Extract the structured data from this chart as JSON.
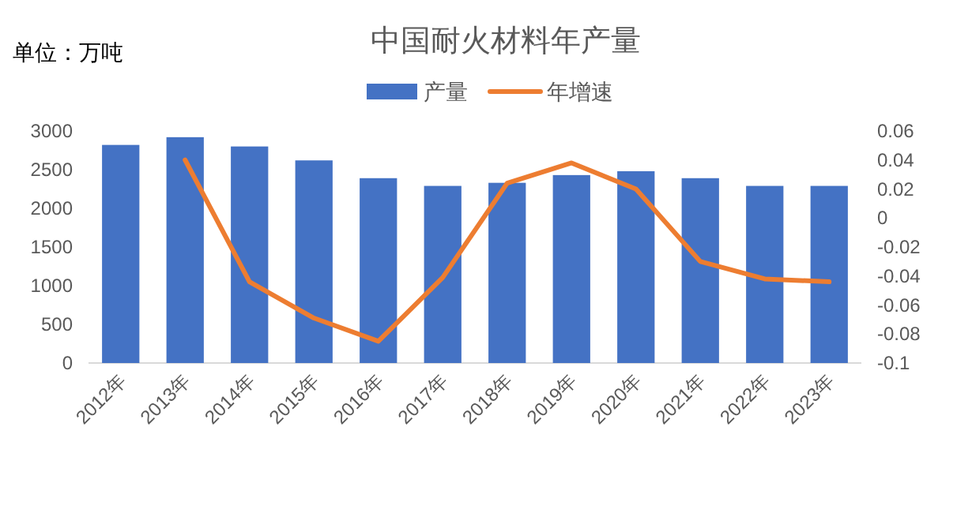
{
  "chart_data": {
    "type": "bar",
    "title": "中国耐火材料年产量",
    "annotations": [
      "单位：万吨"
    ],
    "categories": [
      "2012年",
      "2013年",
      "2014年",
      "2015年",
      "2016年",
      "2017年",
      "2018年",
      "2019年",
      "2020年",
      "2021年",
      "2022年",
      "2023年"
    ],
    "series": [
      {
        "name": "产量",
        "color": "#4472c4",
        "values": [
          2820,
          2920,
          2800,
          2620,
          2390,
          2290,
          2330,
          2430,
          2480,
          2390,
          2290,
          2290
        ]
      },
      {
        "name": "年增速",
        "type": "line",
        "axis": "y2",
        "color": "#ed7d31",
        "line_style": "solid",
        "marker": "none",
        "values": [
          null,
          0.04,
          -0.044,
          -0.069,
          -0.085,
          -0.041,
          0.024,
          0.038,
          0.02,
          -0.03,
          -0.042,
          -0.044
        ]
      }
    ],
    "ylim": [
      0,
      3000
    ],
    "yticks": [
      0,
      500,
      1000,
      1500,
      2000,
      2500,
      3000
    ],
    "y2lim": [
      -0.1,
      0.06
    ],
    "y2ticks": [
      -0.1,
      -0.08,
      -0.06,
      -0.04,
      -0.02,
      0,
      0.02,
      0.04,
      0.06
    ],
    "grid": false,
    "legend": "top"
  }
}
